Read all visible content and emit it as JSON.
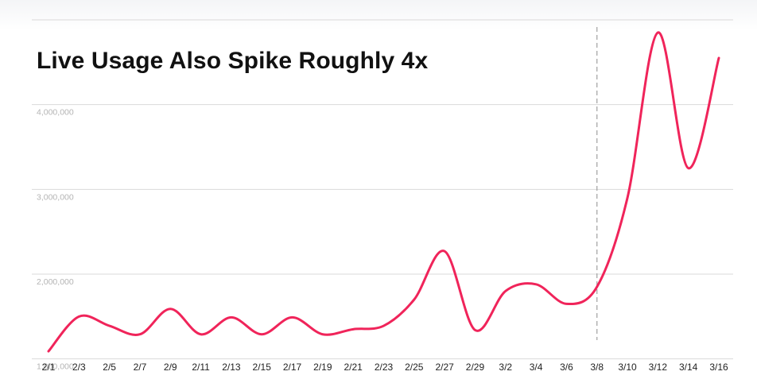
{
  "chart_data": {
    "type": "line",
    "title": "Live Usage Also Spike Roughly 4x",
    "xlabel": "",
    "ylabel": "",
    "ylim": [
      800000,
      5000000
    ],
    "y_tick_values": [
      1000000,
      2000000,
      3000000,
      4000000
    ],
    "y_tick_labels": [
      "1,000,000",
      "2,000,000",
      "3,000,000",
      "4,000,000"
    ],
    "categories": [
      "2/1",
      "2/3",
      "2/5",
      "2/7",
      "2/9",
      "2/11",
      "2/13",
      "2/15",
      "2/17",
      "2/19",
      "2/21",
      "2/23",
      "2/25",
      "2/27",
      "2/29",
      "3/2",
      "3/4",
      "3/6",
      "3/8",
      "3/10",
      "3/12",
      "3/14",
      "3/16"
    ],
    "series": [
      {
        "values": [
          1090000,
          1500000,
          1390000,
          1290000,
          1590000,
          1290000,
          1490000,
          1290000,
          1490000,
          1290000,
          1350000,
          1390000,
          1700000,
          2270000,
          1340000,
          1800000,
          1880000,
          1650000,
          1850000,
          2900000,
          4850000,
          3250000,
          4550000
        ],
        "color": "#f0245a"
      }
    ],
    "reference_line": {
      "x": "3/8",
      "style": "dashed"
    },
    "grid": true,
    "legend": "none"
  }
}
